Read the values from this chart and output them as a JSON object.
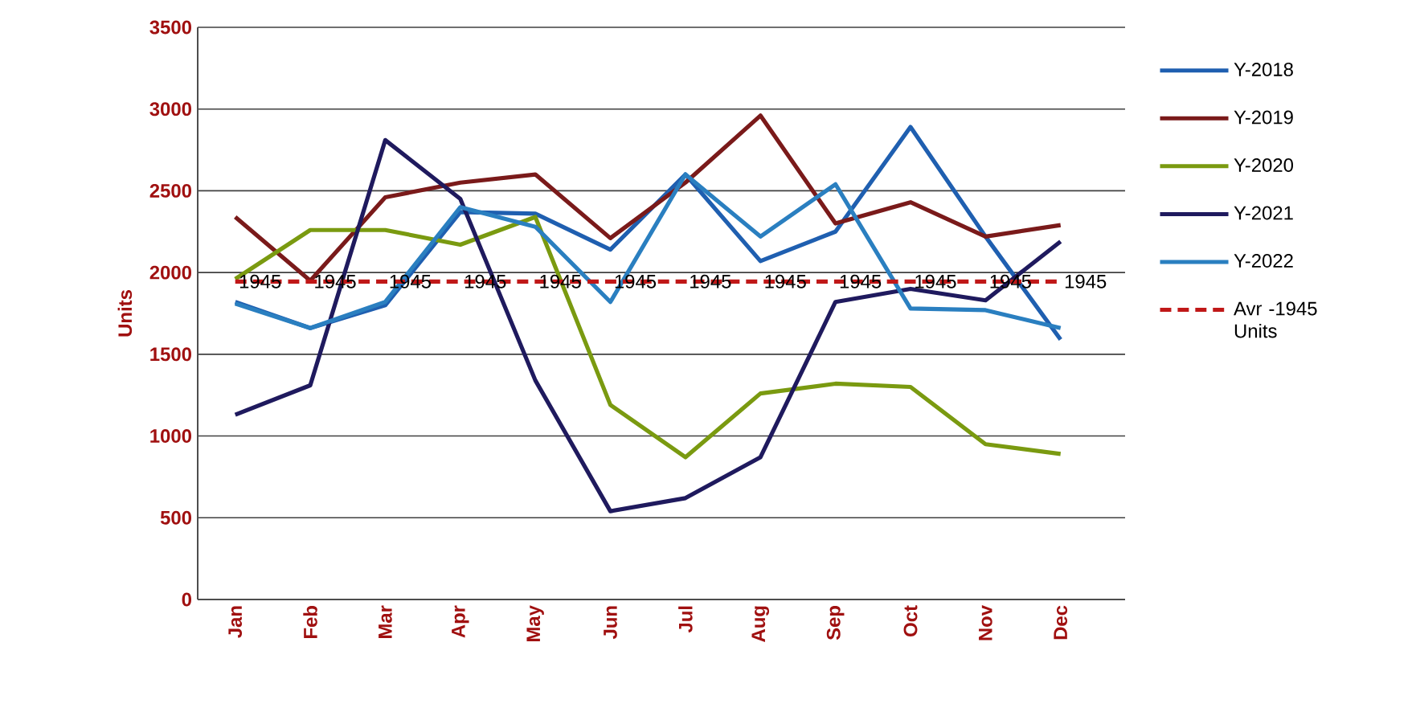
{
  "chart_data": {
    "type": "line",
    "ylabel": "Units",
    "categories": [
      "Jan",
      "Feb",
      "Mar",
      "Apr",
      "May",
      "Jun",
      "Jul",
      "Aug",
      "Sep",
      "Oct",
      "Nov",
      "Dec"
    ],
    "ylim": [
      0,
      3500
    ],
    "yticks": [
      0,
      500,
      1000,
      1500,
      2000,
      2500,
      3000,
      3500
    ],
    "grid": "y",
    "legend": "right",
    "marker": "none",
    "series": [
      {
        "name": "Y-2018",
        "color": "#1f5fb0",
        "values": [
          1820,
          1660,
          1800,
          2370,
          2360,
          2140,
          2600,
          2070,
          2250,
          2890,
          2220,
          1590
        ]
      },
      {
        "name": "Y-2019",
        "color": "#7a1a1a",
        "values": [
          2340,
          1950,
          2460,
          2550,
          2600,
          2210,
          2550,
          2960,
          2300,
          2430,
          2220,
          2290
        ]
      },
      {
        "name": "Y-2020",
        "color": "#7a9a10",
        "values": [
          1960,
          2260,
          2260,
          2170,
          2340,
          1190,
          870,
          1260,
          1320,
          1300,
          950,
          890
        ]
      },
      {
        "name": "Y-2021",
        "color": "#1f1a5e",
        "values": [
          1130,
          1310,
          2810,
          2450,
          1340,
          540,
          620,
          870,
          1820,
          1900,
          1830,
          2190
        ]
      },
      {
        "name": "Y-2022",
        "color": "#2a7fc0",
        "values": [
          1810,
          1660,
          1820,
          2400,
          2280,
          1820,
          2600,
          2220,
          2540,
          1780,
          1770,
          1660
        ]
      },
      {
        "name": "Avr -1945 Units",
        "color": "#c01818",
        "line_style": "dashed",
        "values": [
          1945,
          1945,
          1945,
          1945,
          1945,
          1945,
          1945,
          1945,
          1945,
          1945,
          1945,
          1945
        ],
        "value_labels": [
          "1945",
          "1945",
          "1945",
          "1945",
          "1945",
          "1945",
          "1945",
          "1945",
          "1945",
          "1945",
          "1945",
          "1945"
        ]
      }
    ]
  }
}
